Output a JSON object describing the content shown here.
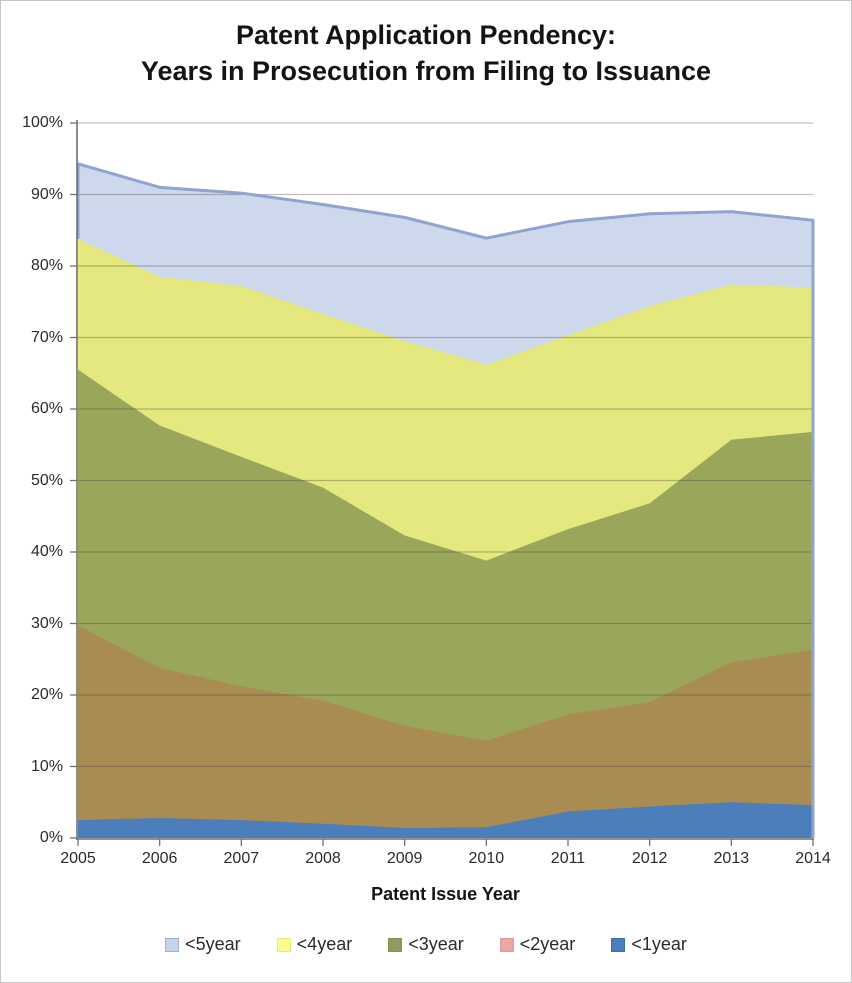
{
  "title": {
    "line1": "Patent Application Pendency:",
    "line2": "Years in Prosecution from Filing to Issuance"
  },
  "chart_data": {
    "type": "area",
    "mode": "overlapping-cumulative",
    "x": [
      2005,
      2006,
      2007,
      2008,
      2009,
      2010,
      2011,
      2012,
      2013,
      2014
    ],
    "x_tick_labels": [
      "2005",
      "2006",
      "2007",
      "2008",
      "2009",
      "2010",
      "2011",
      "2012",
      "2013",
      "2014"
    ],
    "xlabel": "Patent Issue Year",
    "ylim": [
      0,
      100
    ],
    "yticks": [
      0,
      10,
      20,
      30,
      40,
      50,
      60,
      70,
      80,
      90,
      100
    ],
    "y_tick_labels": [
      "0%",
      "10%",
      "20%",
      "30%",
      "40%",
      "50%",
      "60%",
      "70%",
      "80%",
      "90%",
      "100%"
    ],
    "grid": "horizontal",
    "legend_position": "bottom",
    "series": [
      {
        "name": "<5year",
        "values": [
          94.3,
          91.0,
          90.2,
          88.6,
          86.8,
          83.9,
          86.2,
          87.3,
          87.6,
          86.4
        ],
        "area_fill": "#CED8EC",
        "border": "#91A4CF",
        "legend_fill": "#C9D3E8",
        "legend_border": "#9DAECE"
      },
      {
        "name": "<4year",
        "values": [
          83.8,
          78.5,
          77.2,
          73.3,
          69.5,
          66.2,
          70.3,
          74.4,
          77.4,
          77.0
        ],
        "area_fill": "#E4E87E",
        "border": "",
        "legend_fill": "#FBFB8E",
        "legend_border": "#E8E87E"
      },
      {
        "name": "<3year",
        "values": [
          65.5,
          57.7,
          53.3,
          49.0,
          42.3,
          38.8,
          43.2,
          46.8,
          55.7,
          56.8
        ],
        "area_fill": "#9AA75A",
        "border": "",
        "legend_fill": "#8E9B62",
        "legend_border": "#85914F"
      },
      {
        "name": "<2year",
        "values": [
          29.7,
          23.8,
          21.2,
          19.2,
          15.7,
          13.6,
          17.3,
          19.0,
          24.6,
          26.3
        ],
        "area_fill": "#A98C52",
        "border": "",
        "legend_fill": "#E9A8A2",
        "legend_border": "#DE9A94"
      },
      {
        "name": "<1year",
        "values": [
          2.5,
          2.8,
          2.5,
          2.0,
          1.4,
          1.5,
          3.7,
          4.4,
          5.0,
          4.6
        ],
        "area_fill": "#4D7EBC",
        "border": "",
        "legend_fill": "#4A7EBB",
        "legend_border": "#3F6EA6"
      }
    ]
  },
  "style": {
    "axis_color": "#6f6f6f",
    "gridline_rgba": "rgba(60,60,60,0.33)",
    "tick_color": "#6f6f6f"
  }
}
